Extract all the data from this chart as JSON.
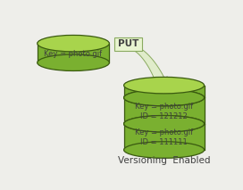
{
  "bg_color": "#eeeeea",
  "cyl_body_color": "#7ab030",
  "cyl_top_color": "#a8d44c",
  "cyl_edge_color": "#3a5a10",
  "disk_body_color": "#7ab030",
  "disk_top_color": "#a8d44c",
  "disk_edge_color": "#3a5a10",
  "arrow_fill": "#e0ecca",
  "arrow_edge": "#8aaa60",
  "put_box_fill": "#e8f4d0",
  "put_box_edge": "#8aaa60",
  "text_color": "#404040",
  "key_text_left": "Key = photo.gif",
  "key_text_top": "Key = photo.gif\nID = 121212",
  "key_text_bottom": "Key = photo.gif\nID = 111111",
  "put_label": "PUT",
  "footer_label": "Versioning  Enabled",
  "footer_fontsize": 7.5,
  "text_fontsize": 6.0,
  "put_fontsize": 7.5
}
